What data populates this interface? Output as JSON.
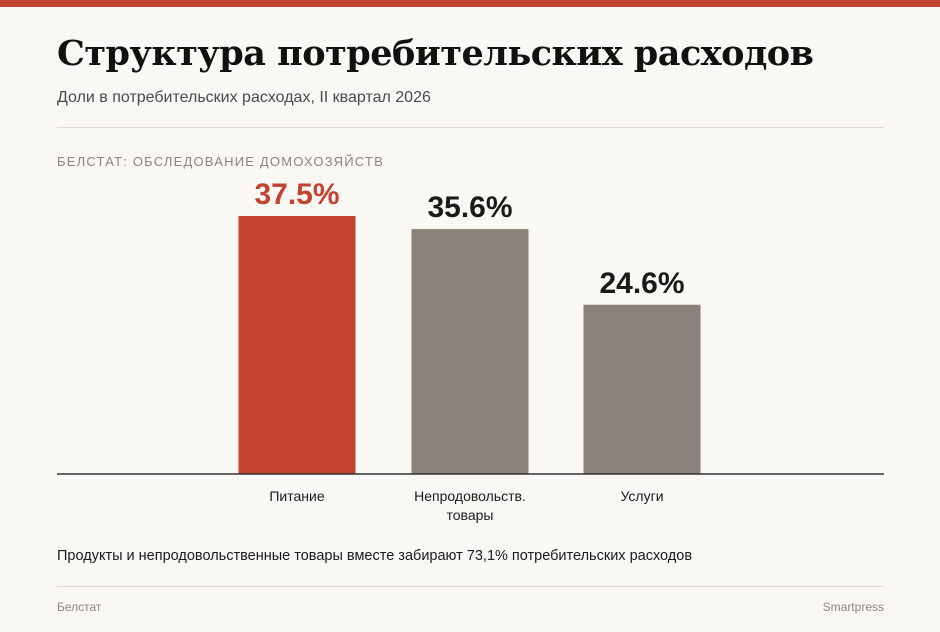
{
  "header": {
    "title": "Структура потребительских расходов",
    "subtitle": "Доли в потребительских расходах, II квартал 2026",
    "source_label": "БЕЛСТАТ: ОБСЛЕДОВАНИЕ ДОМОХОЗЯЙСТВ"
  },
  "chart_data": {
    "type": "bar",
    "categories": [
      [
        "Питание"
      ],
      [
        "Непродовольств.",
        "товары"
      ],
      [
        "Услуги"
      ]
    ],
    "values": [
      37.5,
      35.6,
      24.6
    ],
    "value_labels": [
      "37.5%",
      "35.6%",
      "24.6%"
    ],
    "unit": "%",
    "ylim": [
      0,
      40
    ],
    "grid": false,
    "highlight_index": 0,
    "colors": {
      "highlight": "#c2432f",
      "default": "#8a8279",
      "axis": "#333333",
      "label": "#1a1a1a"
    }
  },
  "note": "Продукты и непродовольственные товары вместе забирают 73,1% потребительских расходов",
  "footer": {
    "source": "Белстат",
    "publisher": "Smartpress"
  }
}
